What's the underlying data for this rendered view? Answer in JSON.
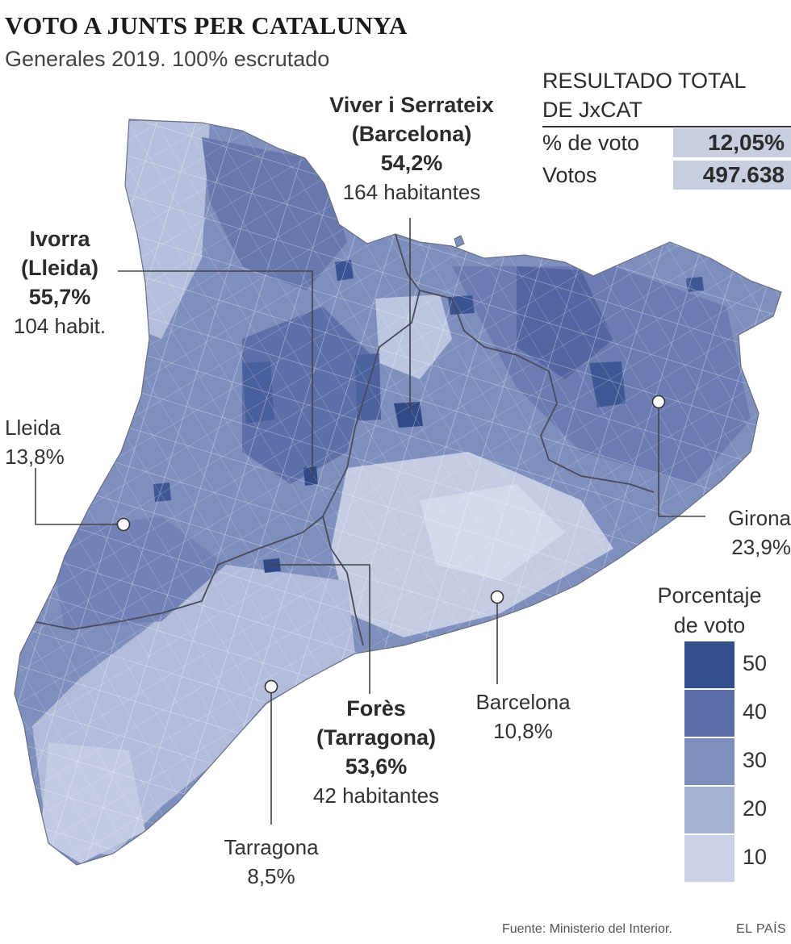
{
  "title": "VOTO A JUNTS PER CATALUNYA",
  "subtitle": "Generales 2019. 100% escrutado",
  "totals": {
    "heading_line1": "RESULTADO TOTAL",
    "heading_line2": "DE JxCAT",
    "rows": [
      {
        "label": "% de voto",
        "value": "12,05%"
      },
      {
        "label": "Votos",
        "value": "497.638"
      }
    ]
  },
  "callouts": {
    "viver": {
      "name": "Viver i Serrateix",
      "province": "(Barcelona)",
      "pct": "54,2%",
      "pop": "164 habitantes"
    },
    "ivorra": {
      "name": "Ivorra",
      "province": "(Lleida)",
      "pct": "55,7%",
      "pop": "104 habit."
    },
    "fores": {
      "name": "Forès",
      "province": "(Tarragona)",
      "pct": "53,6%",
      "pop": "42 habitantes"
    }
  },
  "cities": {
    "lleida": {
      "name": "Lleida",
      "pct": "13,8%"
    },
    "girona": {
      "name": "Girona",
      "pct": "23,9%"
    },
    "barcelona": {
      "name": "Barcelona",
      "pct": "10,8%"
    },
    "tarragona": {
      "name": "Tarragona",
      "pct": "8,5%"
    }
  },
  "legend": {
    "title_line1": "Porcentaje",
    "title_line2": "de voto",
    "bins": [
      {
        "label": "50",
        "color": "#344f8c"
      },
      {
        "label": "40",
        "color": "#5a6fa8"
      },
      {
        "label": "30",
        "color": "#7f8fbd"
      },
      {
        "label": "20",
        "color": "#a5b1d2"
      },
      {
        "label": "10",
        "color": "#cbd1e6"
      }
    ]
  },
  "footer": {
    "source": "Fuente: Ministerio del Interior.",
    "brand": "EL PAÍS"
  }
}
